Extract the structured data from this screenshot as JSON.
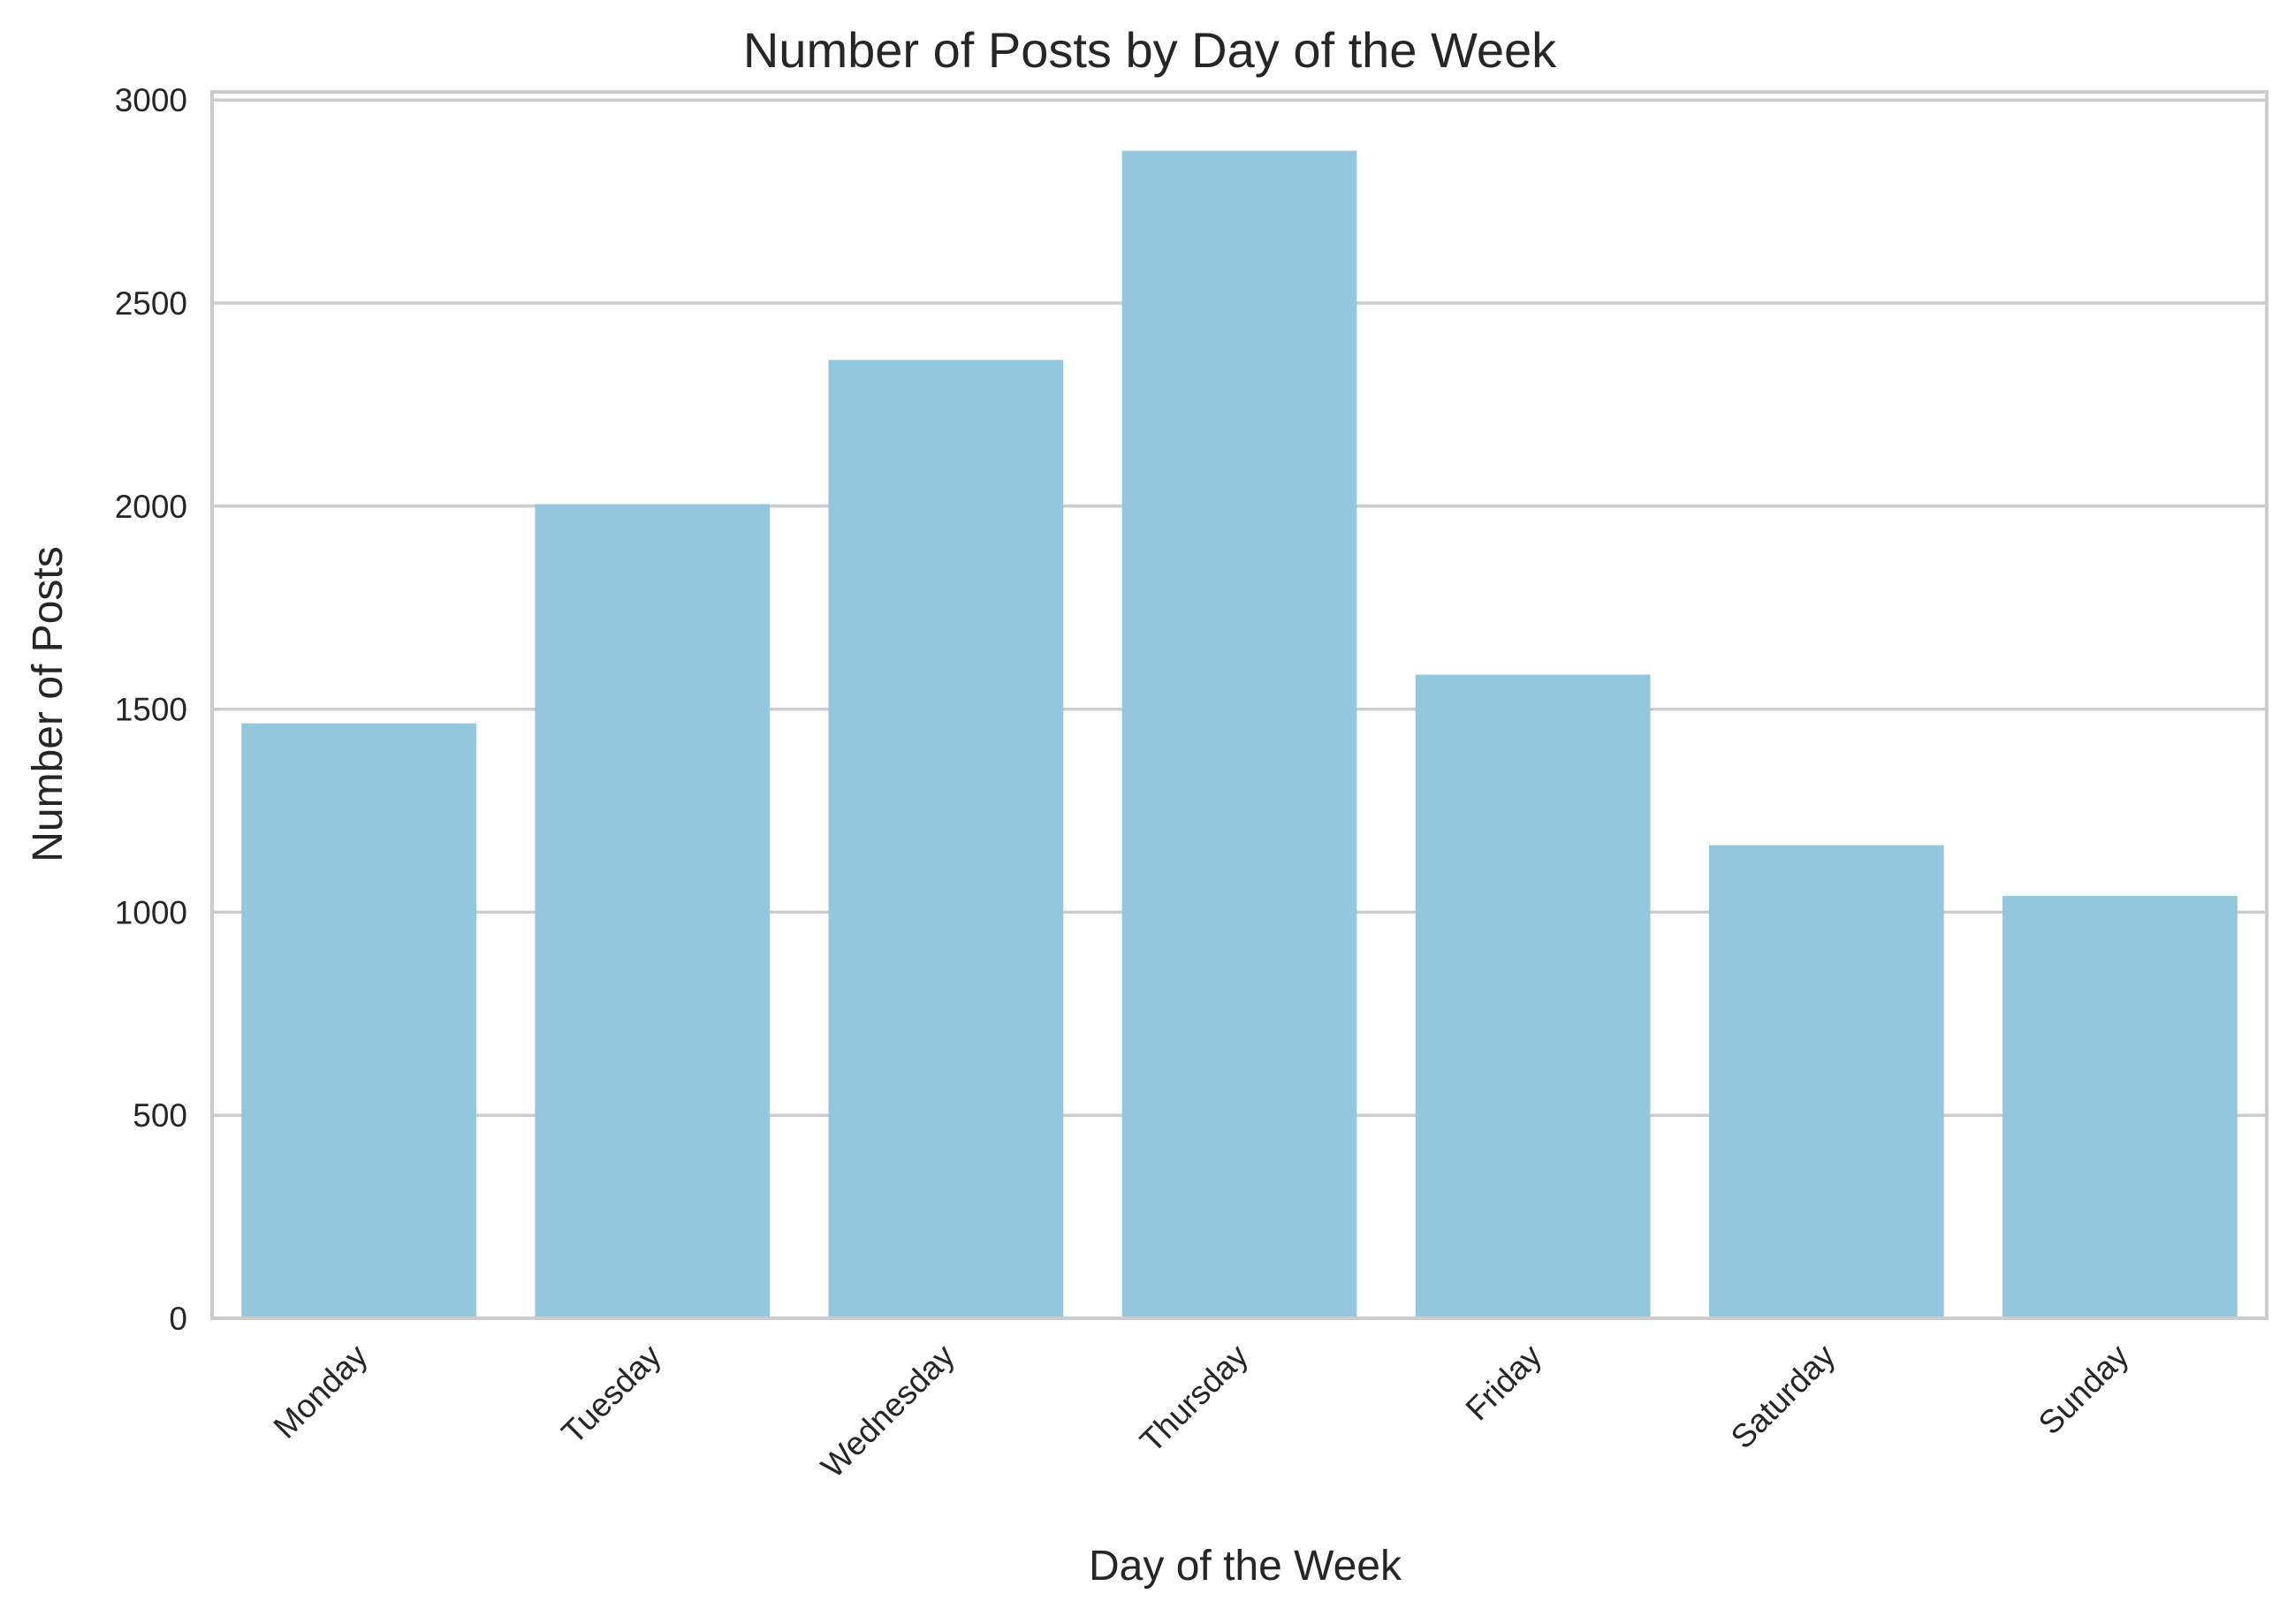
{
  "chart_data": {
    "type": "bar",
    "title": "Number of Posts by Day of the Week",
    "xlabel": "Day of the Week",
    "ylabel": "Number of Posts",
    "categories": [
      "Monday",
      "Tuesday",
      "Wednesday",
      "Thursday",
      "Friday",
      "Saturday",
      "Sunday"
    ],
    "values": [
      1465,
      2005,
      2360,
      2875,
      1585,
      1165,
      1040
    ],
    "ylim": [
      0,
      3020
    ],
    "yticks": [
      0,
      500,
      1000,
      1500,
      2000,
      2500,
      3000
    ],
    "ytick_labels": [
      "0",
      "500",
      "1000",
      "1500",
      "2000",
      "2500",
      "3000"
    ],
    "xtick_rotation_deg": 45,
    "grid": "horizontal",
    "bar_color": "#93c7dd",
    "grid_color": "#cccccc",
    "spine_color": "#cccccc",
    "text_color": "#262626",
    "background": "#ffffff"
  }
}
